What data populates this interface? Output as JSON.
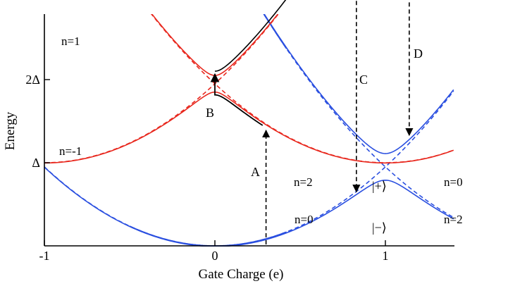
{
  "chart_data": {
    "type": "line",
    "title": "",
    "xlabel": "Gate Charge (e)",
    "ylabel": "Energy",
    "xlim": [
      -1,
      1.4
    ],
    "ylim": [
      0,
      2.6
    ],
    "x_ticks": [
      {
        "value": -1,
        "label": "-1"
      },
      {
        "value": 0,
        "label": "0"
      },
      {
        "value": 1,
        "label": "1"
      }
    ],
    "y_ticks": [
      {
        "value": 1,
        "label": "Δ"
      },
      {
        "value": 2,
        "label": "2Δ"
      }
    ],
    "colors": {
      "red": "#e8281e",
      "blue": "#2a4fe0",
      "black": "#000000"
    },
    "parameters": {
      "EC": 0.95,
      "EJ_blue": 0.16,
      "EJ_red": 0.1
    },
    "series": [
      {
        "kind": "blue-diabatic",
        "style": "solid",
        "formula": "EC*x^2",
        "x": [
          -0.5,
          0.42
        ]
      },
      {
        "kind": "blue-diabatic",
        "style": "solid",
        "formula": "EC*(x-2)^2",
        "x": [
          -0.42,
          0.42
        ]
      },
      {
        "kind": "blue-diabatic",
        "style": "dashed",
        "formula": "EC*x^2",
        "x": [
          -1,
          1.4
        ]
      },
      {
        "kind": "blue-diabatic",
        "style": "dashed",
        "formula": "EC*(x-2)^2",
        "x": [
          -1,
          1.4
        ]
      },
      {
        "kind": "blue-adiabatic",
        "style": "solid",
        "branch": "lower",
        "x": [
          -1,
          1.4
        ]
      },
      {
        "kind": "blue-adiabatic",
        "style": "solid",
        "branch": "upper",
        "x": [
          -1,
          1.4
        ]
      },
      {
        "kind": "red-diabatic",
        "style": "dashed",
        "formula": "1+EC*(x+1)^2",
        "x": [
          -1,
          1.4
        ]
      },
      {
        "kind": "red-diabatic",
        "style": "dashed",
        "formula": "1+EC*(x-1)^2",
        "x": [
          -1,
          1.4
        ]
      },
      {
        "kind": "red-adiabatic",
        "style": "solid",
        "branch": "lower",
        "x": [
          -1,
          1.4
        ]
      },
      {
        "kind": "red-adiabatic",
        "style": "solid",
        "branch": "upper",
        "x": [
          -1,
          1.17
        ]
      }
    ],
    "transitions": [
      {
        "label": "A",
        "x": 0.3,
        "direction": "up",
        "style": "dashed"
      },
      {
        "label": "B",
        "x": 0.0,
        "direction": "up",
        "style": "solid"
      },
      {
        "label": "C",
        "x": 0.83,
        "direction": "down",
        "style": "dashed"
      },
      {
        "label": "D",
        "x": 1.14,
        "direction": "down",
        "style": "dashed"
      }
    ],
    "annotations": [
      {
        "id": "n1",
        "text": "n=1"
      },
      {
        "id": "nm1",
        "text": "n=-1"
      },
      {
        "id": "n2_left",
        "text": "n=2"
      },
      {
        "id": "n0_left",
        "text": "n=0"
      },
      {
        "id": "n0_right",
        "text": "n=0"
      },
      {
        "id": "n2_right",
        "text": "n=2"
      },
      {
        "id": "plus",
        "text": "|+⟩"
      },
      {
        "id": "minus",
        "text": "|−⟩"
      }
    ]
  }
}
